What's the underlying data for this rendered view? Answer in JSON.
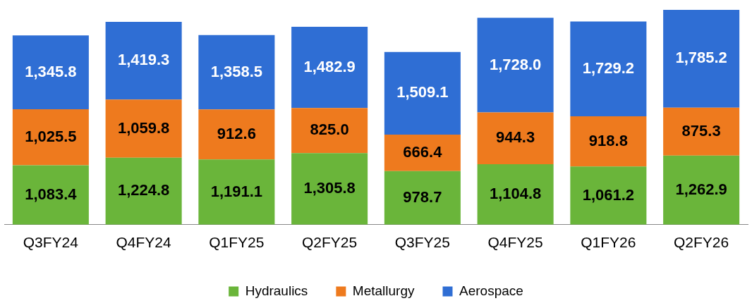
{
  "chart_data": {
    "type": "bar",
    "stacked": true,
    "legend": "bottom",
    "grid": false,
    "categories": [
      "Q3FY24",
      "Q4FY24",
      "Q1FY25",
      "Q2FY25",
      "Q3FY25",
      "Q4FY25",
      "Q1FY26",
      "Q2FY26"
    ],
    "series": [
      {
        "name": "Hydraulics",
        "color": "#6ab53a",
        "values": [
          1083.4,
          1224.8,
          1191.1,
          1305.8,
          978.7,
          1104.8,
          1061.2,
          1262.9
        ],
        "value_labels": [
          "1,083.4",
          "1,224.8",
          "1,191.1",
          "1,305.8",
          "978.7",
          "1,104.8",
          "1,061.2",
          "1,262.9"
        ]
      },
      {
        "name": "Metallurgy",
        "color": "#ee7a1e",
        "values": [
          1025.5,
          1059.8,
          912.6,
          825.0,
          666.4,
          944.3,
          918.8,
          875.3
        ],
        "value_labels": [
          "1,025.5",
          "1,059.8",
          "912.6",
          "825.0",
          "666.4",
          "944.3",
          "918.8",
          "875.3"
        ]
      },
      {
        "name": "Aerospace",
        "color": "#2f6ed4",
        "values": [
          1345.8,
          1419.3,
          1358.5,
          1482.9,
          1509.1,
          1728.0,
          1729.2,
          1785.2
        ],
        "value_labels": [
          "1,345.8",
          "1,419.3",
          "1,358.5",
          "1,482.9",
          "1,509.1",
          "1,728.0",
          "1,729.2",
          "1,785.2"
        ]
      }
    ]
  }
}
